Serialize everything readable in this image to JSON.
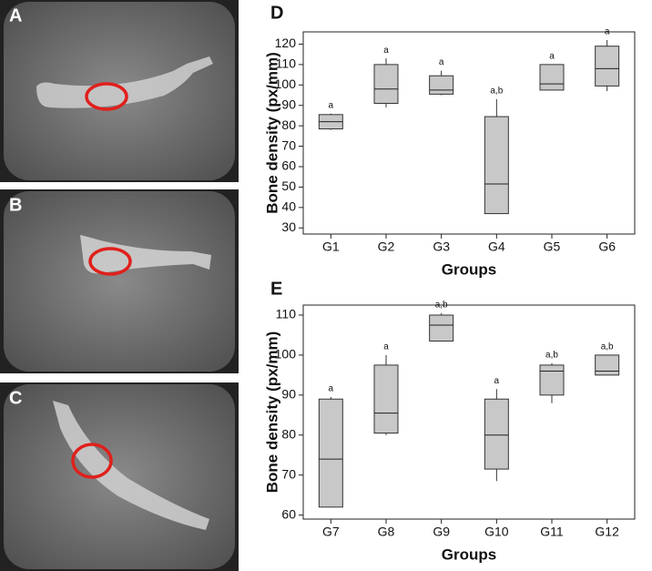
{
  "image_panels": [
    {
      "label": "A"
    },
    {
      "label": "B"
    },
    {
      "label": "C"
    }
  ],
  "chart_data": [
    {
      "type": "box",
      "panel_label": "D",
      "x_label": "Groups",
      "y_label": "Bone density (px/mm)",
      "categories": [
        "G1",
        "G2",
        "G3",
        "G4",
        "G5",
        "G6"
      ],
      "boxes": [
        {
          "min": 78,
          "q1": 78.5,
          "median": 82,
          "q3": 85.5,
          "max": 86
        },
        {
          "min": 89,
          "q1": 91,
          "median": 98,
          "q3": 110,
          "max": 113
        },
        {
          "min": 95,
          "q1": 95.5,
          "median": 97.5,
          "q3": 104.5,
          "max": 107
        },
        {
          "min": 37,
          "q1": 37,
          "median": 51.5,
          "q3": 84.5,
          "max": 93
        },
        {
          "min": 97.5,
          "q1": 97.5,
          "median": 100.5,
          "q3": 110,
          "max": 110
        },
        {
          "min": 97,
          "q1": 99.5,
          "median": 108,
          "q3": 119,
          "max": 122
        }
      ],
      "annotations": [
        "a",
        "a",
        "a",
        "a,b",
        "a",
        "a"
      ],
      "color": "#c8c8c8",
      "ylim": [
        27,
        126
      ],
      "yticks": [
        30,
        40,
        50,
        60,
        70,
        80,
        90,
        100,
        110,
        120
      ]
    },
    {
      "type": "box",
      "panel_label": "E",
      "x_label": "Groups",
      "y_label": "Bone density (px/mm)",
      "categories": [
        "G7",
        "G8",
        "G9",
        "G10",
        "G11",
        "G12"
      ],
      "boxes": [
        {
          "min": 62,
          "q1": 62,
          "median": 74,
          "q3": 89,
          "max": 89.5
        },
        {
          "min": 80,
          "q1": 80.5,
          "median": 85.5,
          "q3": 97.5,
          "max": 100
        },
        {
          "min": 103.5,
          "q1": 103.5,
          "median": 107.5,
          "q3": 110,
          "max": 110.5
        },
        {
          "min": 68.5,
          "q1": 71.5,
          "median": 80,
          "q3": 89,
          "max": 91.5
        },
        {
          "min": 88,
          "q1": 90,
          "median": 96,
          "q3": 97.5,
          "max": 98
        },
        {
          "min": 95,
          "q1": 95,
          "median": 96,
          "q3": 100,
          "max": 100
        }
      ],
      "annotations": [
        "a",
        "a",
        "a,b",
        "a",
        "a,b",
        "a,b"
      ],
      "color": "#c8c8c8",
      "ylim": [
        59,
        112.5
      ],
      "yticks": [
        60,
        70,
        80,
        90,
        100,
        110
      ]
    }
  ]
}
